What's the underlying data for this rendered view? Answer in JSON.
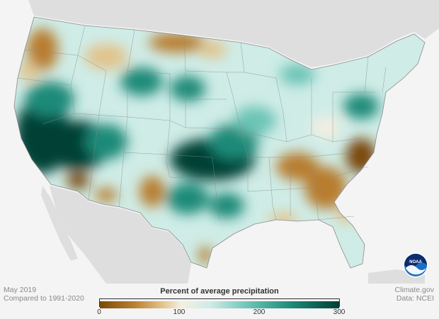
{
  "header": {
    "title": "Percent of average precipitation"
  },
  "footer": {
    "date": "May 2019",
    "baseline": "Compared to 1991-2020",
    "site": "Climate.gov",
    "data_source": "Data: NCEI"
  },
  "legend": {
    "ticks": [
      "0",
      "100",
      "200",
      "300"
    ],
    "colors": [
      "#7a4a0a",
      "#b87d2e",
      "#e2c38a",
      "#f5efe0",
      "#cfece7",
      "#6cc4b6",
      "#1e8a78",
      "#003f36"
    ]
  },
  "logo": {
    "icon": "noaa-logo-icon",
    "text": "NOAA"
  },
  "map": {
    "background": "#f4f4f4",
    "land_outside": "#dedede",
    "border_color": "#8a8a8a"
  }
}
